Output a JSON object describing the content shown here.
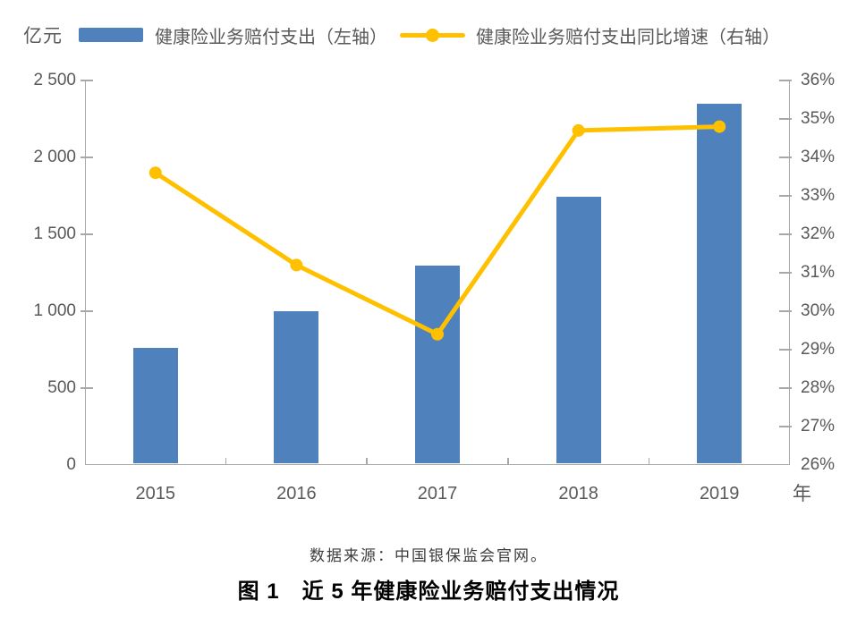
{
  "figure": {
    "left_axis_unit": "亿元",
    "x_axis_unit": "年",
    "legend": [
      {
        "label": "健康险业务赔付支出（左轴）",
        "type": "bar",
        "color": "#4F81BD"
      },
      {
        "label": "健康险业务赔付支出同比增速（右轴）",
        "type": "line",
        "color": "#FFC000"
      }
    ],
    "source_note": "数据来源：中国银保监会官网。",
    "caption": "图 1　近 5 年健康险业务赔付支出情况"
  },
  "chart_data": {
    "type": "bar",
    "subtype": "combo-bar-line-dual-axis",
    "categories": [
      "2015",
      "2016",
      "2017",
      "2018",
      "2019"
    ],
    "series": [
      {
        "name": "健康险业务赔付支出（左轴）",
        "type": "bar",
        "axis": "left",
        "color": "#4F81BD",
        "values": [
          763,
          1001,
          1295,
          1744,
          2351
        ]
      },
      {
        "name": "健康险业务赔付支出同比增速（右轴）",
        "type": "line",
        "axis": "right",
        "color": "#FFC000",
        "values": [
          33.6,
          31.2,
          29.4,
          34.7,
          34.8
        ]
      }
    ],
    "title": "图 1　近 5 年健康险业务赔付支出情况",
    "xlabel": "年",
    "ylabel_left": "亿元",
    "ylabel_right": "%",
    "left_axis": {
      "min": 0,
      "max": 2500,
      "step": 500,
      "tick_labels": [
        "0",
        "500",
        "1 000",
        "1 500",
        "2 000",
        "2 500"
      ]
    },
    "right_axis": {
      "min": 26,
      "max": 36,
      "step": 1,
      "tick_labels": [
        "26%",
        "27%",
        "28%",
        "29%",
        "30%",
        "31%",
        "32%",
        "33%",
        "34%",
        "35%",
        "36%"
      ]
    },
    "grid": false,
    "legend_position": "top",
    "axis_color": "#A8A8A8",
    "tick_text_color": "#595959"
  }
}
